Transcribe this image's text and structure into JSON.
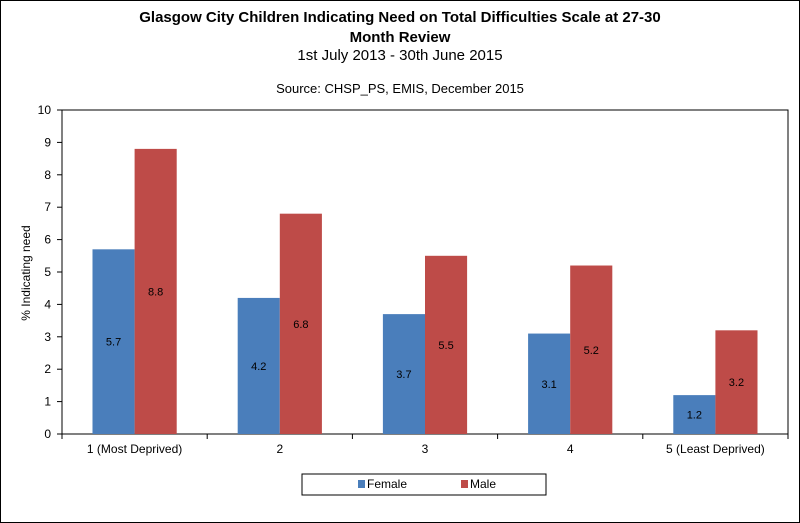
{
  "chart_data": {
    "type": "bar",
    "title": "Glasgow City Children Indicating Need on Total Difficulties Scale at 27-30",
    "title_line2": "Month Review",
    "subtitle": "1st July 2013 - 30th June 2015",
    "source": "Source: CHSP_PS, EMIS, December 2015",
    "xlabel": "",
    "ylabel": "% Indicating need",
    "ylim": [
      0,
      10
    ],
    "yticks": [
      "0",
      "1",
      "2",
      "3",
      "4",
      "5",
      "6",
      "7",
      "8",
      "9",
      "10"
    ],
    "grid": false,
    "legend_position": "bottom",
    "categories": [
      "1 (Most Deprived)",
      "2",
      "3",
      "4",
      "5 (Least Deprived)"
    ],
    "series": [
      {
        "name": "Female",
        "color": "#4a7ebb",
        "values": [
          5.7,
          4.2,
          3.7,
          3.1,
          1.2
        ],
        "labels": [
          "5.7",
          "4.2",
          "3.7",
          "3.1",
          "1.2"
        ]
      },
      {
        "name": "Male",
        "color": "#be4b48",
        "values": [
          8.8,
          6.8,
          5.5,
          5.2,
          3.2
        ],
        "labels": [
          "8.8",
          "6.8",
          "5.5",
          "5.2",
          "3.2"
        ]
      }
    ]
  }
}
